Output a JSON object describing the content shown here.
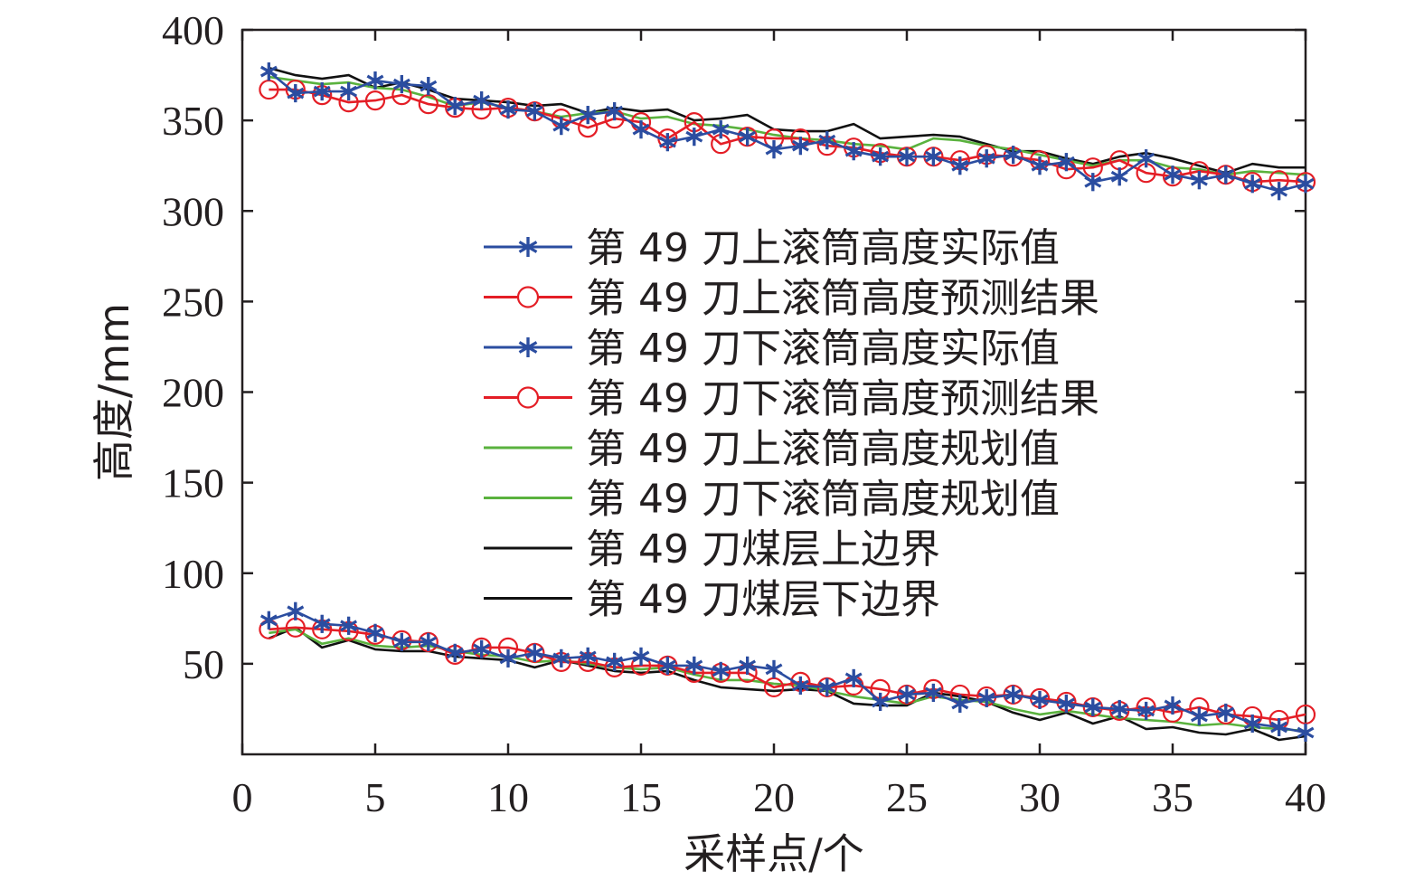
{
  "chart_data": {
    "type": "line",
    "xlabel": "采样点/个",
    "ylabel": "高度/mm",
    "xlim": [
      0,
      40
    ],
    "ylim": [
      0,
      400
    ],
    "xticks": [
      0,
      5,
      10,
      15,
      20,
      25,
      30,
      35,
      40
    ],
    "yticks": [
      50,
      100,
      150,
      200,
      250,
      300,
      350,
      400
    ],
    "grid": false,
    "legend_position": "center-right",
    "x": [
      1,
      2,
      3,
      4,
      5,
      6,
      7,
      8,
      9,
      10,
      11,
      12,
      13,
      14,
      15,
      16,
      17,
      18,
      19,
      20,
      21,
      22,
      23,
      24,
      25,
      26,
      27,
      28,
      29,
      30,
      31,
      32,
      33,
      34,
      35,
      36,
      37,
      38,
      39,
      40
    ],
    "series": [
      {
        "name": "第 49 刀上滚筒高度实际值",
        "color": "#2b4da0",
        "marker": "asterisk",
        "values": [
          377,
          365,
          366,
          366,
          372,
          370,
          369,
          358,
          361,
          356,
          355,
          347,
          353,
          355,
          345,
          338,
          341,
          345,
          341,
          334,
          336,
          339,
          333,
          330,
          330,
          330,
          325,
          329,
          331,
          325,
          327,
          316,
          319,
          329,
          320,
          317,
          320,
          315,
          311,
          315
        ]
      },
      {
        "name": "第 49 刀上滚筒高度预测结果",
        "color": "#e41e26",
        "marker": "circle",
        "values": [
          367,
          367,
          364,
          360,
          361,
          364,
          359,
          357,
          356,
          357,
          355,
          351,
          346,
          351,
          349,
          340,
          349,
          337,
          341,
          340,
          340,
          336,
          335,
          332,
          330,
          330,
          328,
          331,
          330,
          328,
          323,
          324,
          328,
          321,
          319,
          322,
          320,
          316,
          317,
          316
        ]
      },
      {
        "name": "第 49 刀下滚筒高度实际值",
        "color": "#2b4da0",
        "marker": "asterisk",
        "values": [
          74,
          79,
          72,
          71,
          67,
          62,
          62,
          56,
          58,
          53,
          56,
          53,
          54,
          51,
          54,
          49,
          49,
          46,
          49,
          47,
          38,
          37,
          42,
          29,
          33,
          34,
          28,
          31,
          33,
          30,
          28,
          26,
          25,
          24,
          27,
          21,
          23,
          17,
          15,
          12
        ]
      },
      {
        "name": "第 49 刀下滚筒高度预测结果",
        "color": "#e41e26",
        "marker": "circle",
        "values": [
          69,
          70,
          69,
          68,
          66,
          63,
          62,
          55,
          59,
          59,
          56,
          51,
          51,
          48,
          49,
          49,
          45,
          45,
          45,
          37,
          40,
          37,
          38,
          36,
          33,
          36,
          33,
          32,
          33,
          31,
          29,
          26,
          24,
          26,
          23,
          26,
          22,
          21,
          19,
          22
        ]
      },
      {
        "name": "第 49 刀上滚筒高度规划值",
        "color": "#5ab23e",
        "marker": "none",
        "values": [
          374,
          372,
          370,
          371,
          368,
          367,
          363,
          358,
          360,
          357,
          355,
          352,
          354,
          355,
          351,
          352,
          348,
          347,
          345,
          342,
          340,
          339,
          337,
          336,
          334,
          340,
          339,
          336,
          334,
          331,
          328,
          325,
          328,
          328,
          324,
          323,
          320,
          322,
          321,
          320
        ]
      },
      {
        "name": "第 49 刀下滚筒高度规划值",
        "color": "#5ab23e",
        "marker": "none",
        "values": [
          67,
          69,
          61,
          64,
          60,
          59,
          60,
          57,
          55,
          54,
          51,
          52,
          50,
          48,
          47,
          48,
          44,
          41,
          41,
          39,
          38,
          35,
          32,
          30,
          28,
          32,
          30,
          29,
          25,
          22,
          24,
          22,
          20,
          19,
          18,
          16,
          17,
          15,
          14,
          13
        ]
      },
      {
        "name": "第 49 刀煤层上边界",
        "color": "#111111",
        "marker": "none",
        "values": [
          379,
          375,
          373,
          375,
          368,
          371,
          367,
          362,
          361,
          360,
          358,
          359,
          354,
          357,
          355,
          356,
          350,
          351,
          353,
          345,
          344,
          344,
          348,
          340,
          341,
          342,
          341,
          337,
          333,
          333,
          329,
          326,
          330,
          332,
          329,
          325,
          321,
          326,
          324,
          324
        ]
      },
      {
        "name": "第 49 刀煤层下边界",
        "color": "#111111",
        "marker": "none",
        "values": [
          64,
          70,
          59,
          63,
          58,
          57,
          57,
          54,
          53,
          52,
          48,
          52,
          49,
          46,
          45,
          46,
          41,
          37,
          36,
          35,
          36,
          35,
          28,
          27,
          27,
          34,
          32,
          29,
          23,
          19,
          23,
          17,
          21,
          14,
          15,
          12,
          11,
          14,
          8,
          10
        ]
      }
    ]
  }
}
